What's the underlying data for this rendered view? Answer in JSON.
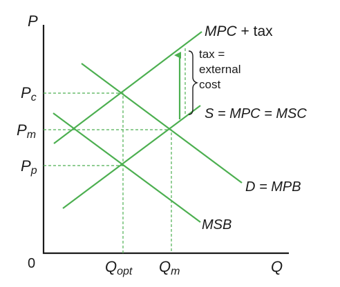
{
  "axes": {
    "y_label": "P",
    "x_label": "Q",
    "origin_label": "0"
  },
  "price_labels": {
    "pc_main": "P",
    "pc_sub": "c",
    "pm_main": "P",
    "pm_sub": "m",
    "pp_main": "P",
    "pp_sub": "p"
  },
  "quantity_labels": {
    "qopt_main": "Q",
    "qopt_sub": "opt",
    "qm_main": "Q",
    "qm_sub": "m"
  },
  "curves": {
    "mpc_tax": {
      "label_italic": "MPC",
      "label_rest": " + tax"
    },
    "supply": {
      "label": "S = MPC = MSC"
    },
    "demand": {
      "label": "D = MPB"
    },
    "msb": {
      "label": "MSB"
    }
  },
  "tax_note": {
    "line1": "tax =",
    "line2": "external",
    "line3": "cost"
  },
  "colors": {
    "curve": "#4caf50",
    "axis": "#1a1a1a"
  }
}
